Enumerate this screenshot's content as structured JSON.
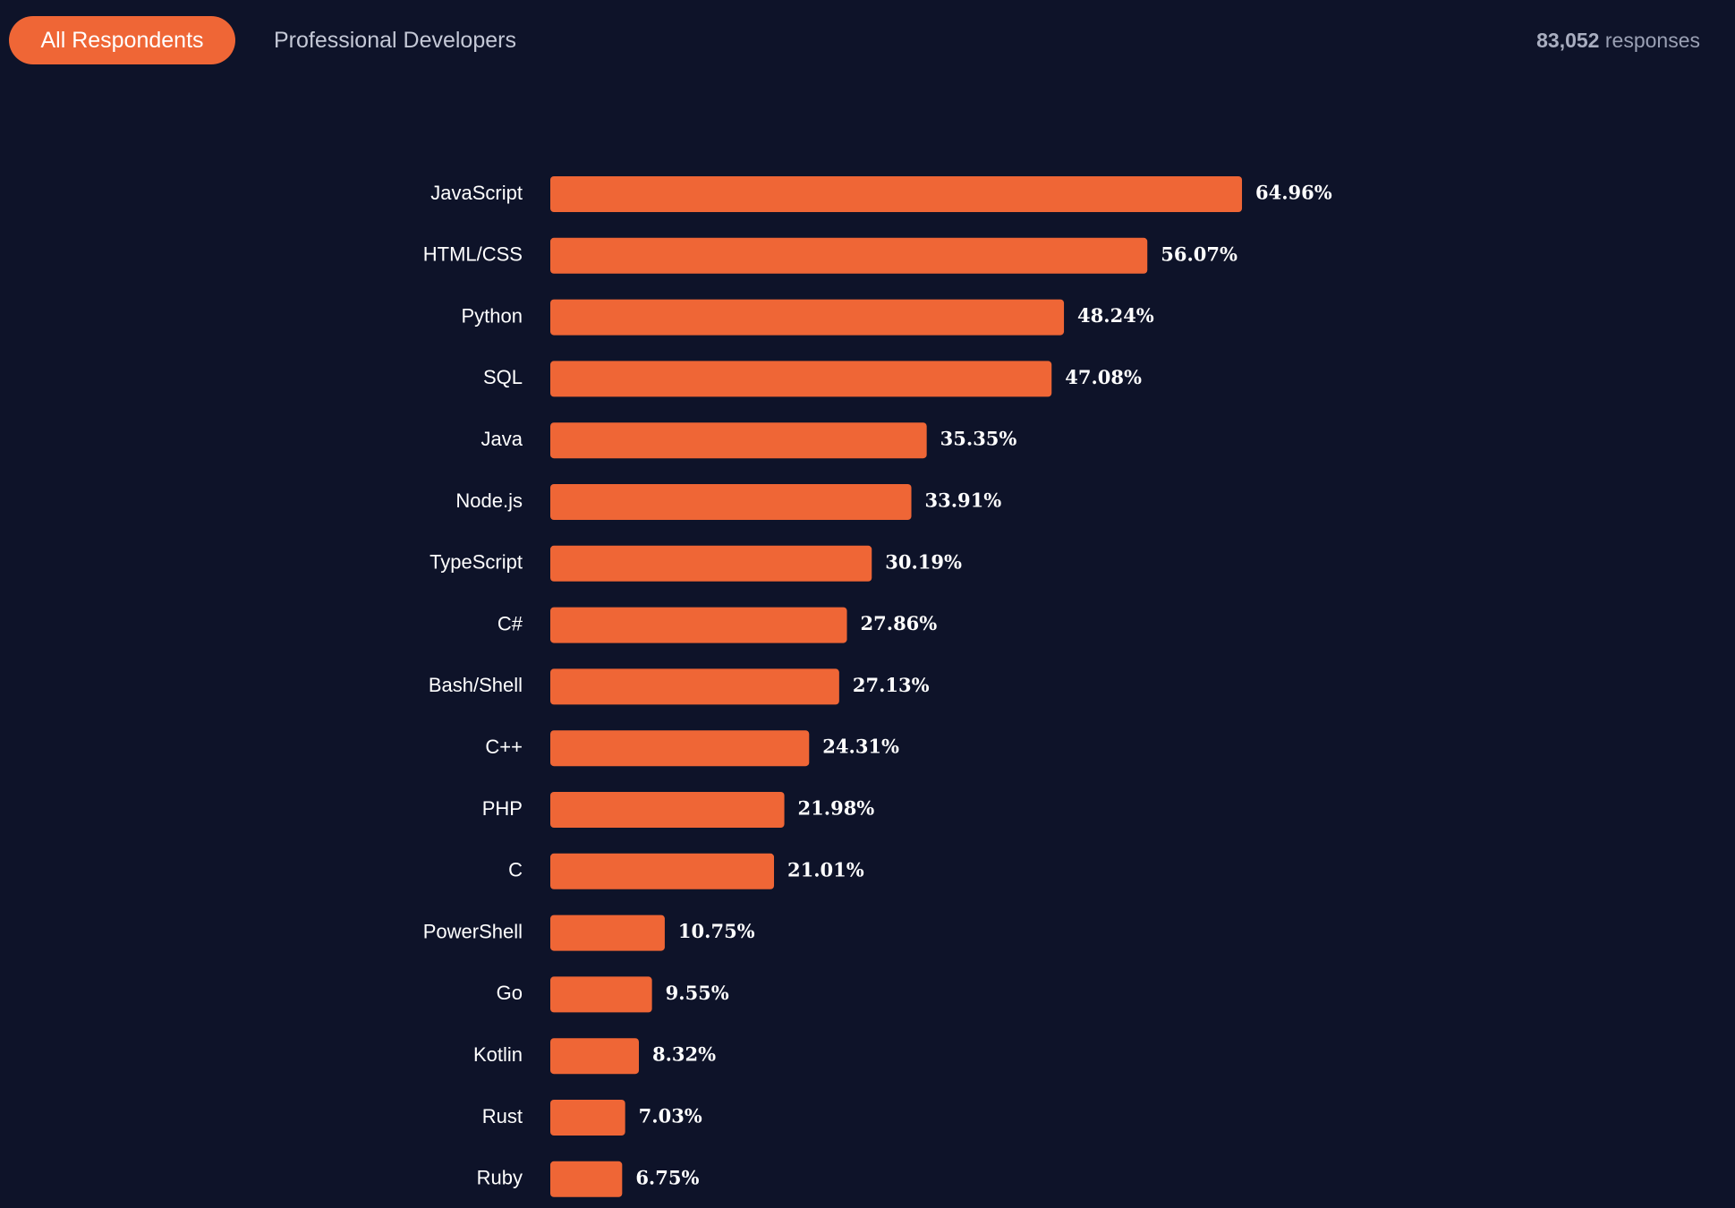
{
  "tabs": {
    "all_label": "All Respondents",
    "pro_label": "Professional Developers"
  },
  "summary": {
    "count": "83,052",
    "suffix": "responses"
  },
  "colors": {
    "background": "#0e1329",
    "accent": "#ef6636"
  },
  "chart_data": {
    "type": "bar",
    "orientation": "horizontal",
    "title": "",
    "xlabel": "",
    "ylabel": "",
    "xlim": [
      0,
      100
    ],
    "grid": false,
    "categories": [
      "JavaScript",
      "HTML/CSS",
      "Python",
      "SQL",
      "Java",
      "Node.js",
      "TypeScript",
      "C#",
      "Bash/Shell",
      "C++",
      "PHP",
      "C",
      "PowerShell",
      "Go",
      "Kotlin",
      "Rust",
      "Ruby"
    ],
    "values": [
      64.96,
      56.07,
      48.24,
      47.08,
      35.35,
      33.91,
      30.19,
      27.86,
      27.13,
      24.31,
      21.98,
      21.01,
      10.75,
      9.55,
      8.32,
      7.03,
      6.75
    ],
    "value_labels": [
      "64.96%",
      "56.07%",
      "48.24%",
      "47.08%",
      "35.35%",
      "33.91%",
      "30.19%",
      "27.86%",
      "27.13%",
      "24.31%",
      "21.98%",
      "21.01%",
      "10.75%",
      "9.55%",
      "8.32%",
      "7.03%",
      "6.75%"
    ]
  }
}
